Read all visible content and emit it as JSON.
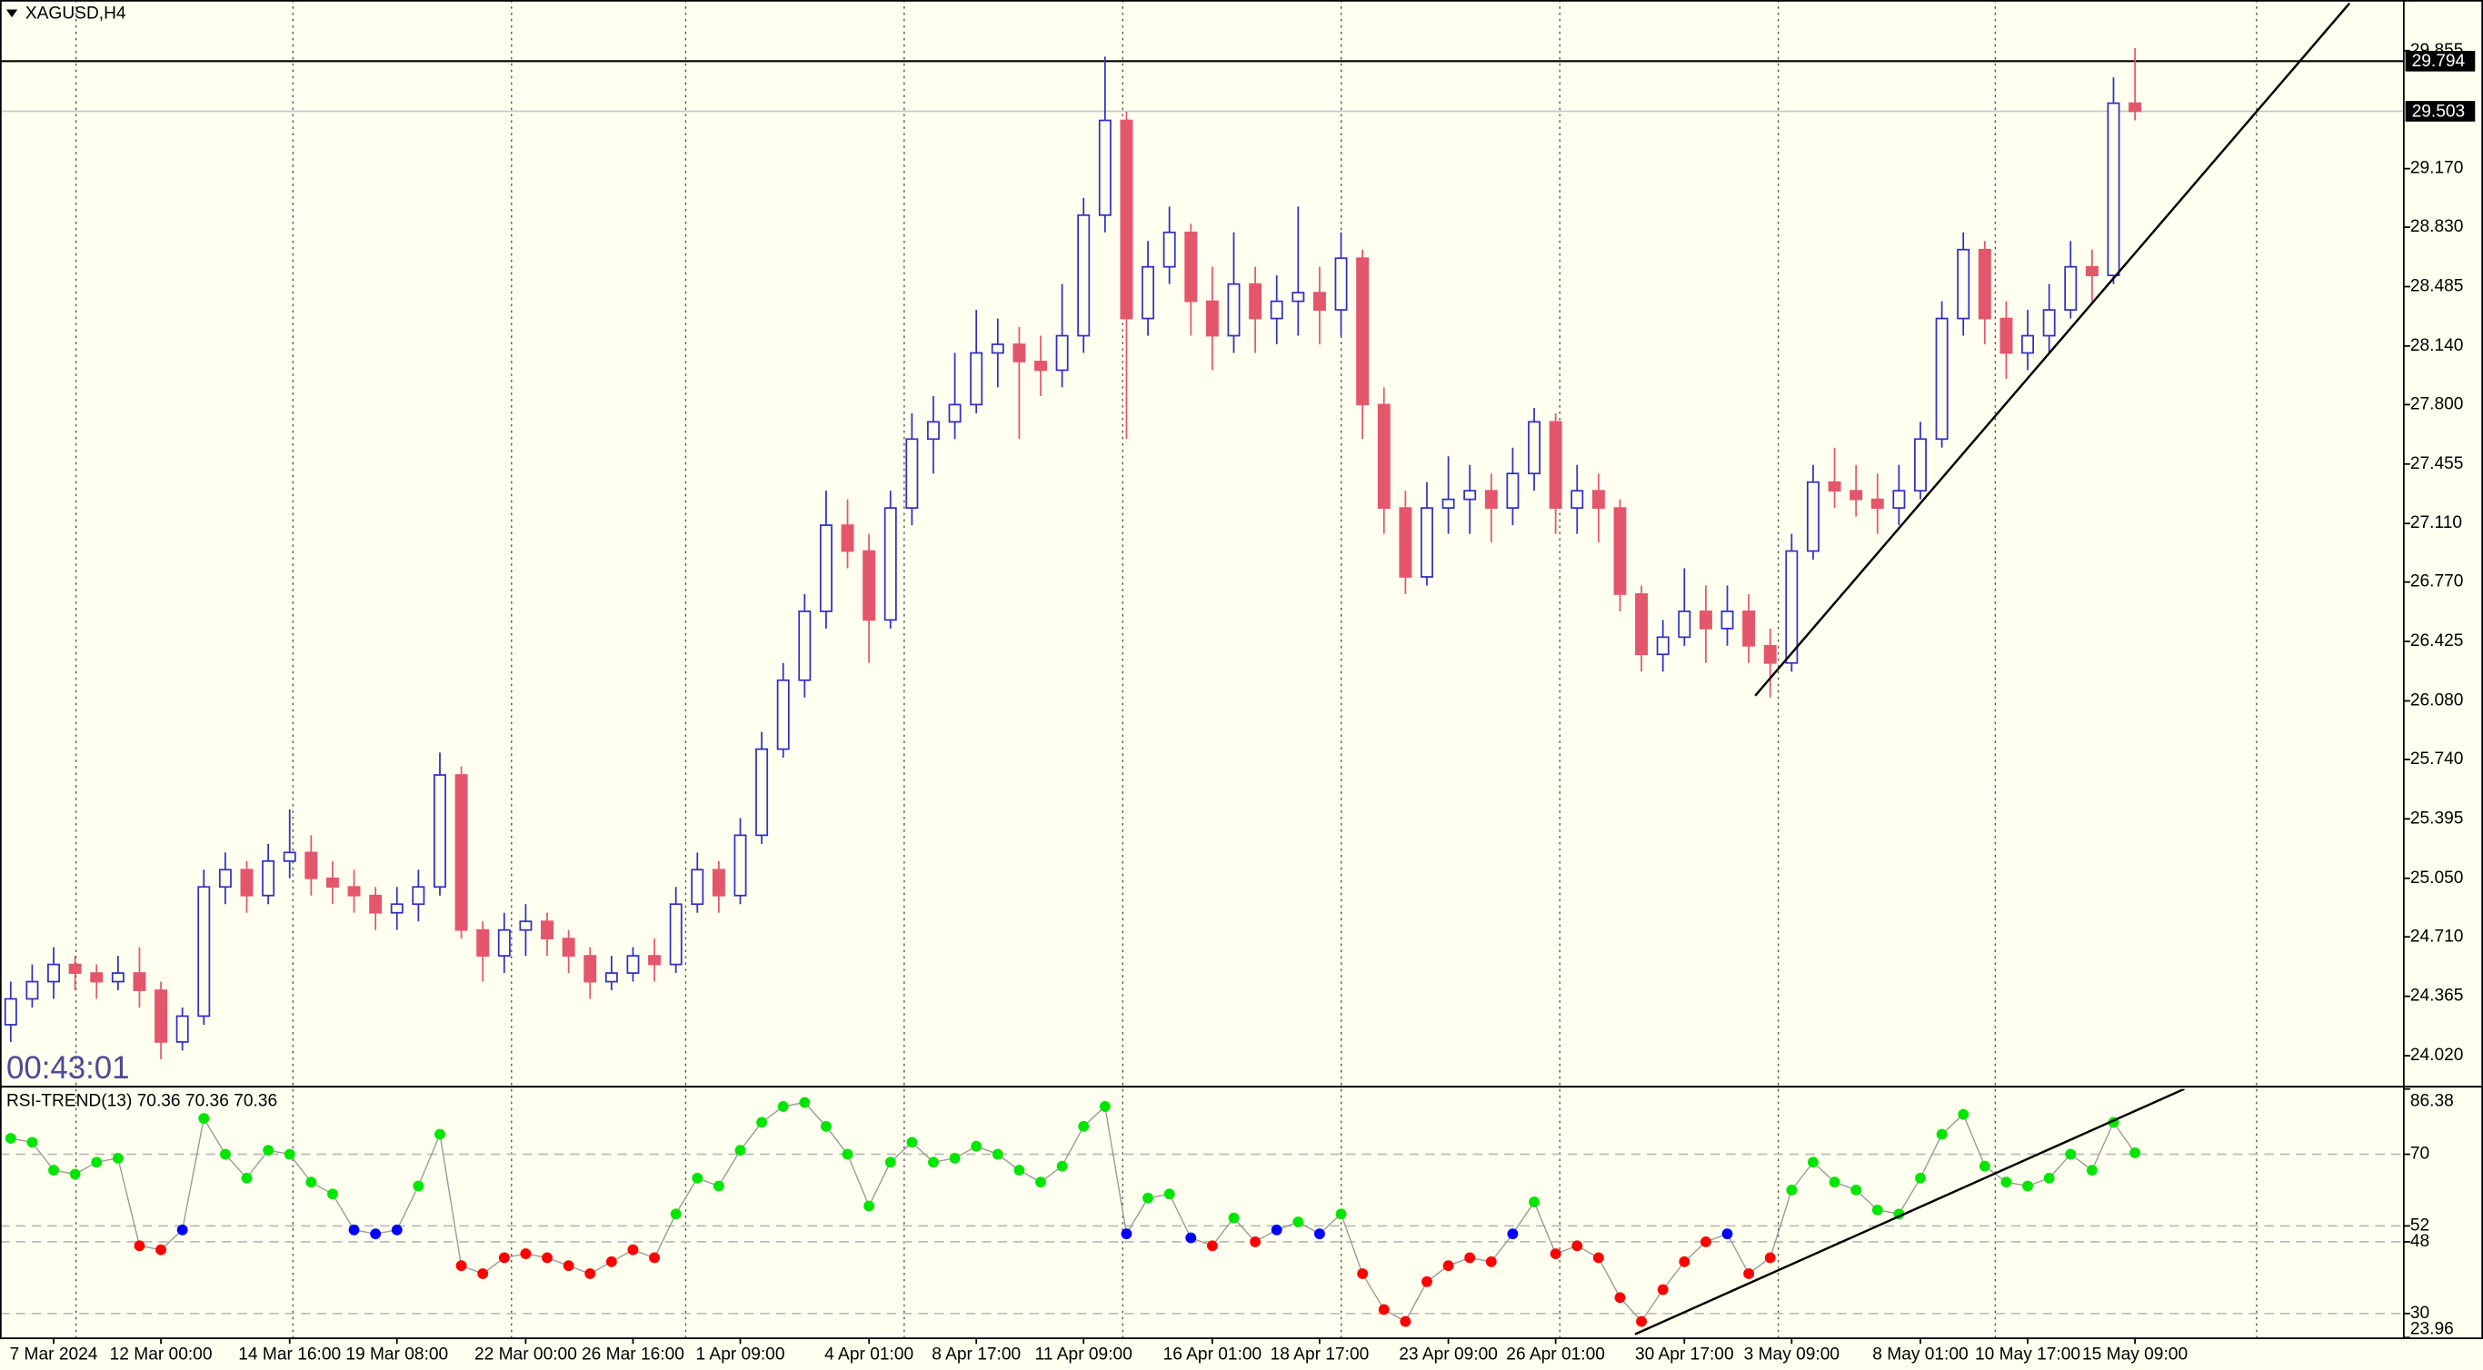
{
  "chart_data": [
    {
      "type": "candlestick",
      "title": "XAGUSD,H4",
      "timer": "00:43:01",
      "categories": [
        null,
        null,
        "7 Mar 2024",
        null,
        null,
        null,
        null,
        "12 Mar 00:00",
        null,
        null,
        null,
        null,
        null,
        "14 Mar 16:00",
        null,
        null,
        null,
        null,
        "19 Mar 08:00",
        null,
        null,
        null,
        null,
        null,
        "22 Mar 00:00",
        null,
        null,
        null,
        null,
        "26 Mar 16:00",
        null,
        null,
        null,
        null,
        "1 Apr 09:00",
        null,
        null,
        null,
        null,
        null,
        "4 Apr 01:00",
        null,
        null,
        null,
        null,
        "8 Apr 17:00",
        null,
        null,
        null,
        null,
        "11 Apr 09:00",
        null,
        null,
        null,
        null,
        null,
        "16 Apr 01:00",
        null,
        null,
        null,
        null,
        "18 Apr 17:00",
        null,
        null,
        null,
        null,
        null,
        "23 Apr 09:00",
        null,
        null,
        null,
        null,
        "26 Apr 01:00",
        null,
        null,
        null,
        null,
        null,
        "30 Apr 17:00",
        null,
        null,
        null,
        null,
        "3 May 09:00",
        null,
        null,
        null,
        null,
        null,
        "8 May 01:00",
        null,
        null,
        null,
        null,
        "10 May 17:00",
        null,
        null,
        null,
        null,
        "15 May 09:00"
      ],
      "candles": [
        [
          24.2,
          24.45,
          24.1,
          24.35
        ],
        [
          24.35,
          24.55,
          24.3,
          24.45
        ],
        [
          24.45,
          24.65,
          24.35,
          24.55
        ],
        [
          24.55,
          24.6,
          24.4,
          24.5
        ],
        [
          24.5,
          24.55,
          24.35,
          24.45
        ],
        [
          24.45,
          24.6,
          24.4,
          24.5
        ],
        [
          24.5,
          24.65,
          24.3,
          24.4
        ],
        [
          24.4,
          24.45,
          24.0,
          24.1
        ],
        [
          24.1,
          24.3,
          24.05,
          24.25
        ],
        [
          24.25,
          25.1,
          24.2,
          25.0
        ],
        [
          25.0,
          25.2,
          24.9,
          25.1
        ],
        [
          25.1,
          25.15,
          24.85,
          24.95
        ],
        [
          24.95,
          25.25,
          24.9,
          25.15
        ],
        [
          25.15,
          25.45,
          25.05,
          25.2
        ],
        [
          25.2,
          25.3,
          24.95,
          25.05
        ],
        [
          25.05,
          25.15,
          24.9,
          25.0
        ],
        [
          25.0,
          25.1,
          24.85,
          24.95
        ],
        [
          24.95,
          25.0,
          24.75,
          24.85
        ],
        [
          24.85,
          25.0,
          24.75,
          24.9
        ],
        [
          24.9,
          25.1,
          24.8,
          25.0
        ],
        [
          25.0,
          25.78,
          24.95,
          25.65
        ],
        [
          25.65,
          25.7,
          24.7,
          24.75
        ],
        [
          24.75,
          24.8,
          24.45,
          24.6
        ],
        [
          24.6,
          24.85,
          24.5,
          24.75
        ],
        [
          24.75,
          24.9,
          24.6,
          24.8
        ],
        [
          24.8,
          24.85,
          24.6,
          24.7
        ],
        [
          24.7,
          24.75,
          24.5,
          24.6
        ],
        [
          24.6,
          24.65,
          24.35,
          24.45
        ],
        [
          24.45,
          24.6,
          24.4,
          24.5
        ],
        [
          24.5,
          24.65,
          24.45,
          24.6
        ],
        [
          24.6,
          24.7,
          24.45,
          24.55
        ],
        [
          24.55,
          25.0,
          24.5,
          24.9
        ],
        [
          24.9,
          25.2,
          24.85,
          25.1
        ],
        [
          25.1,
          25.15,
          24.85,
          24.95
        ],
        [
          24.95,
          25.4,
          24.9,
          25.3
        ],
        [
          25.3,
          25.9,
          25.25,
          25.8
        ],
        [
          25.8,
          26.3,
          25.75,
          26.2
        ],
        [
          26.2,
          26.7,
          26.1,
          26.6
        ],
        [
          26.6,
          27.3,
          26.5,
          27.1
        ],
        [
          27.1,
          27.25,
          26.85,
          26.95
        ],
        [
          26.95,
          27.05,
          26.3,
          26.55
        ],
        [
          26.55,
          27.3,
          26.5,
          27.2
        ],
        [
          27.2,
          27.75,
          27.1,
          27.6
        ],
        [
          27.6,
          27.85,
          27.4,
          27.7
        ],
        [
          27.7,
          28.1,
          27.6,
          27.8
        ],
        [
          27.8,
          28.35,
          27.75,
          28.1
        ],
        [
          28.1,
          28.3,
          27.9,
          28.15
        ],
        [
          28.15,
          28.25,
          27.6,
          28.05
        ],
        [
          28.05,
          28.2,
          27.85,
          28.0
        ],
        [
          28.0,
          28.5,
          27.9,
          28.2
        ],
        [
          28.2,
          29.0,
          28.1,
          28.9
        ],
        [
          28.9,
          29.82,
          28.8,
          29.45
        ],
        [
          29.45,
          29.5,
          27.6,
          28.3
        ],
        [
          28.3,
          28.75,
          28.2,
          28.6
        ],
        [
          28.6,
          28.95,
          28.5,
          28.8
        ],
        [
          28.8,
          28.85,
          28.2,
          28.4
        ],
        [
          28.4,
          28.6,
          28.0,
          28.2
        ],
        [
          28.2,
          28.8,
          28.1,
          28.5
        ],
        [
          28.5,
          28.6,
          28.1,
          28.3
        ],
        [
          28.3,
          28.55,
          28.15,
          28.4
        ],
        [
          28.4,
          28.95,
          28.2,
          28.45
        ],
        [
          28.45,
          28.6,
          28.15,
          28.35
        ],
        [
          28.35,
          28.8,
          28.2,
          28.65
        ],
        [
          28.65,
          28.7,
          27.6,
          27.8
        ],
        [
          27.8,
          27.9,
          27.05,
          27.2
        ],
        [
          27.2,
          27.3,
          26.7,
          26.8
        ],
        [
          26.8,
          27.35,
          26.75,
          27.2
        ],
        [
          27.2,
          27.5,
          27.05,
          27.25
        ],
        [
          27.25,
          27.45,
          27.05,
          27.3
        ],
        [
          27.3,
          27.4,
          27.0,
          27.2
        ],
        [
          27.2,
          27.55,
          27.1,
          27.4
        ],
        [
          27.4,
          27.78,
          27.3,
          27.7
        ],
        [
          27.7,
          27.75,
          27.05,
          27.2
        ],
        [
          27.2,
          27.45,
          27.05,
          27.3
        ],
        [
          27.3,
          27.4,
          27.0,
          27.2
        ],
        [
          27.2,
          27.25,
          26.6,
          26.7
        ],
        [
          26.7,
          26.75,
          26.25,
          26.35
        ],
        [
          26.35,
          26.55,
          26.25,
          26.45
        ],
        [
          26.45,
          26.85,
          26.4,
          26.6
        ],
        [
          26.6,
          26.75,
          26.3,
          26.5
        ],
        [
          26.5,
          26.75,
          26.4,
          26.6
        ],
        [
          26.6,
          26.7,
          26.3,
          26.4
        ],
        [
          26.4,
          26.5,
          26.1,
          26.3
        ],
        [
          26.3,
          27.05,
          26.25,
          26.95
        ],
        [
          26.95,
          27.45,
          26.9,
          27.35
        ],
        [
          27.35,
          27.55,
          27.2,
          27.3
        ],
        [
          27.3,
          27.45,
          27.15,
          27.25
        ],
        [
          27.25,
          27.4,
          27.05,
          27.2
        ],
        [
          27.2,
          27.45,
          27.1,
          27.3
        ],
        [
          27.3,
          27.7,
          27.25,
          27.6
        ],
        [
          27.6,
          28.4,
          27.55,
          28.3
        ],
        [
          28.3,
          28.8,
          28.2,
          28.7
        ],
        [
          28.7,
          28.75,
          28.15,
          28.3
        ],
        [
          28.3,
          28.4,
          27.95,
          28.1
        ],
        [
          28.1,
          28.35,
          28.0,
          28.2
        ],
        [
          28.2,
          28.5,
          28.1,
          28.35
        ],
        [
          28.35,
          28.75,
          28.3,
          28.6
        ],
        [
          28.6,
          28.7,
          28.4,
          28.55
        ],
        [
          28.55,
          29.7,
          28.5,
          29.55
        ],
        [
          29.55,
          29.87,
          29.45,
          29.503
        ]
      ],
      "ylim": [
        23.845,
        30.149
      ],
      "yticks": [
        29.855,
        {
          "value": 29.17,
          "label": "29.170"
        },
        {
          "value": 28.83,
          "label": "28.830"
        },
        28.485,
        {
          "value": 28.14,
          "label": "28.140"
        },
        {
          "value": 27.8,
          "label": "27.800"
        },
        27.455,
        {
          "value": 27.11,
          "label": "27.110"
        },
        {
          "value": 26.77,
          "label": "26.770"
        },
        26.425,
        {
          "value": 26.08,
          "label": "26.080"
        },
        {
          "value": 25.74,
          "label": "25.740"
        },
        25.395,
        {
          "value": 25.05,
          "label": "25.050"
        },
        {
          "value": 24.71,
          "label": "24.710"
        },
        24.365,
        {
          "value": 24.02,
          "label": "24.020"
        }
      ],
      "hline": 29.794,
      "bid": 29.503,
      "trendline": {
        "x": [
          81.3,
          109
        ],
        "y": [
          26.11,
          30.13
        ]
      },
      "colors": {
        "up": "#2f2fc8",
        "down": "#e4566c"
      }
    },
    {
      "type": "dots",
      "title": "RSI-TREND(13) 70.36 70.36 70.36",
      "values": [
        74,
        73,
        66,
        65,
        68,
        69,
        47,
        46,
        51,
        79,
        70,
        64,
        71,
        70,
        63,
        60,
        51,
        50,
        51,
        62,
        75,
        42,
        40,
        44,
        45,
        44,
        42,
        40,
        43,
        46,
        44,
        55,
        64,
        62,
        71,
        78,
        82,
        83,
        77,
        70,
        57,
        68,
        73,
        68,
        69,
        72,
        70,
        66,
        63,
        67,
        77,
        82,
        50,
        59,
        60,
        49,
        47,
        54,
        48,
        51,
        53,
        50,
        55,
        40,
        31,
        28,
        38,
        42,
        44,
        43,
        50,
        58,
        45,
        47,
        44,
        34,
        28,
        36,
        43,
        48,
        50,
        40,
        44,
        61,
        68,
        63,
        61,
        56,
        55,
        64,
        75,
        80,
        67,
        63,
        62,
        64,
        70,
        66,
        78,
        70.36
      ],
      "ylim": [
        23.96,
        86.38
      ],
      "yticks": [
        86.38,
        70,
        52,
        48,
        30,
        23.96
      ],
      "thresholds": [
        48,
        52
      ],
      "colors": {
        "up": "#00e600",
        "mid": "#0000ff",
        "down": "#ff0000"
      },
      "trendline": {
        "x": [
          75.7,
          101.3
        ],
        "y": [
          24.8,
          86.4
        ]
      }
    }
  ]
}
